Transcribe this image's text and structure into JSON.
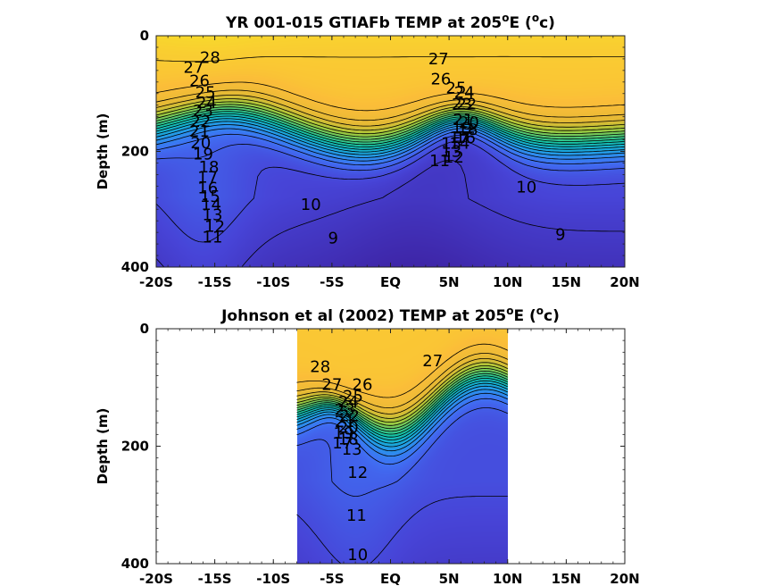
{
  "chart_data": [
    {
      "type": "heatmap",
      "title": "YR 001-015 GTIAFb TEMP at 205",
      "title_super_deg": "o",
      "title_mid": "E (",
      "title_super_unit": "o",
      "title_end": "c)",
      "xlabel": "",
      "ylabel": "Depth (m)",
      "x_ticks": [
        "-20S",
        "-15S",
        "-10S",
        "-5S",
        "EQ",
        "5N",
        "10N",
        "15N",
        "20N"
      ],
      "y_ticks": [
        "0",
        "200",
        "400"
      ],
      "xlim": [
        -20,
        20
      ],
      "ylim": [
        400,
        0
      ],
      "data_xrange": [
        -20,
        20
      ],
      "contour_levels": [
        9,
        10,
        11,
        12,
        13,
        14,
        15,
        16,
        17,
        18,
        19,
        20,
        21,
        22,
        23,
        24,
        25,
        26,
        27,
        28
      ],
      "contour_labels": [
        {
          "text": "28",
          "x": -15.4,
          "depth": 38
        },
        {
          "text": "27",
          "x": -16.8,
          "depth": 55
        },
        {
          "text": "26",
          "x": -16.3,
          "depth": 78
        },
        {
          "text": "25",
          "x": -15.8,
          "depth": 98
        },
        {
          "text": "24",
          "x": -15.7,
          "depth": 116
        },
        {
          "text": "23",
          "x": -16.0,
          "depth": 130
        },
        {
          "text": "22",
          "x": -16.2,
          "depth": 148
        },
        {
          "text": "21",
          "x": -16.3,
          "depth": 165
        },
        {
          "text": "20",
          "x": -16.2,
          "depth": 185
        },
        {
          "text": "19",
          "x": -16.0,
          "depth": 205
        },
        {
          "text": "18",
          "x": -15.5,
          "depth": 227
        },
        {
          "text": "17",
          "x": -15.6,
          "depth": 245
        },
        {
          "text": "16",
          "x": -15.6,
          "depth": 263
        },
        {
          "text": "15",
          "x": -15.4,
          "depth": 278
        },
        {
          "text": "14",
          "x": -15.3,
          "depth": 292
        },
        {
          "text": "13",
          "x": -15.2,
          "depth": 310
        },
        {
          "text": "12",
          "x": -15.0,
          "depth": 330
        },
        {
          "text": "11",
          "x": -15.2,
          "depth": 348
        },
        {
          "text": "10",
          "x": -6.8,
          "depth": 292
        },
        {
          "text": "9",
          "x": -4.9,
          "depth": 350
        },
        {
          "text": "27",
          "x": 4.1,
          "depth": 40
        },
        {
          "text": "26",
          "x": 4.3,
          "depth": 75
        },
        {
          "text": "25",
          "x": 5.6,
          "depth": 90
        },
        {
          "text": "24",
          "x": 6.3,
          "depth": 98
        },
        {
          "text": "23",
          "x": 6.1,
          "depth": 118
        },
        {
          "text": "22",
          "x": 6.5,
          "depth": 118
        },
        {
          "text": "21",
          "x": 6.2,
          "depth": 145
        },
        {
          "text": "20",
          "x": 6.7,
          "depth": 150
        },
        {
          "text": "19",
          "x": 6.1,
          "depth": 160
        },
        {
          "text": "18",
          "x": 6.6,
          "depth": 162
        },
        {
          "text": "17",
          "x": 5.9,
          "depth": 176
        },
        {
          "text": "16",
          "x": 6.4,
          "depth": 176
        },
        {
          "text": "15",
          "x": 5.2,
          "depth": 186
        },
        {
          "text": "14",
          "x": 5.9,
          "depth": 186
        },
        {
          "text": "13",
          "x": 5.2,
          "depth": 200
        },
        {
          "text": "12",
          "x": 5.4,
          "depth": 210
        },
        {
          "text": "11",
          "x": 4.2,
          "depth": 216
        },
        {
          "text": "10",
          "x": 11.6,
          "depth": 262
        },
        {
          "text": "9",
          "x": 14.5,
          "depth": 344
        }
      ]
    },
    {
      "type": "heatmap",
      "title": "Johnson et al (2002) TEMP at 205",
      "title_super_deg": "o",
      "title_mid": "E (",
      "title_super_unit": "o",
      "title_end": "c)",
      "xlabel": "",
      "ylabel": "Depth (m)",
      "x_ticks": [
        "-20S",
        "-15S",
        "-10S",
        "-5S",
        "EQ",
        "5N",
        "10N",
        "15N",
        "20N"
      ],
      "y_ticks": [
        "0",
        "200",
        "400"
      ],
      "xlim": [
        -20,
        20
      ],
      "ylim": [
        400,
        0
      ],
      "data_xrange": [
        -8,
        10
      ],
      "contour_levels": [
        10,
        11,
        12,
        13,
        14,
        15,
        16,
        17,
        18,
        19,
        20,
        21,
        22,
        23,
        24,
        25,
        26,
        27,
        28
      ],
      "contour_labels": [
        {
          "text": "28",
          "x": -6.0,
          "depth": 65
        },
        {
          "text": "27",
          "x": -5.0,
          "depth": 95
        },
        {
          "text": "26",
          "x": -2.4,
          "depth": 95
        },
        {
          "text": "27",
          "x": 3.6,
          "depth": 55
        },
        {
          "text": "25",
          "x": -3.2,
          "depth": 115
        },
        {
          "text": "24",
          "x": -3.6,
          "depth": 125
        },
        {
          "text": "23",
          "x": -3.9,
          "depth": 138
        },
        {
          "text": "22",
          "x": -3.5,
          "depth": 148
        },
        {
          "text": "21",
          "x": -3.9,
          "depth": 158
        },
        {
          "text": "20",
          "x": -3.6,
          "depth": 168
        },
        {
          "text": "19",
          "x": -4.0,
          "depth": 178
        },
        {
          "text": "18",
          "x": -3.6,
          "depth": 188
        },
        {
          "text": "17",
          "x": -4.1,
          "depth": 195
        },
        {
          "text": "13",
          "x": -3.3,
          "depth": 205
        },
        {
          "text": "12",
          "x": -2.8,
          "depth": 245
        },
        {
          "text": "11",
          "x": -2.9,
          "depth": 318
        },
        {
          "text": "10",
          "x": -2.8,
          "depth": 385
        }
      ]
    }
  ]
}
